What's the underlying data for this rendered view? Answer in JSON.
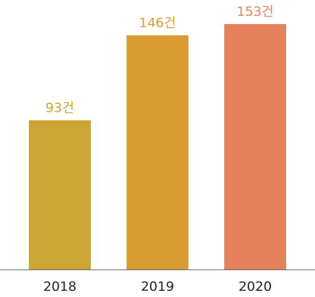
{
  "chart_data": {
    "type": "bar",
    "categories": [
      "2018",
      "2019",
      "2020"
    ],
    "values": [
      93,
      146,
      153
    ],
    "value_labels": [
      "93건",
      "146건",
      "153건"
    ],
    "unit": "건",
    "title": "",
    "xlabel": "",
    "ylabel": "",
    "ylim": [
      0,
      153
    ],
    "grid": false,
    "legend": "none",
    "bar_colors": [
      "#cca534",
      "#d99c30",
      "#e5825b"
    ],
    "label_colors": [
      "#cca534",
      "#d99c30",
      "#e5825b"
    ]
  }
}
